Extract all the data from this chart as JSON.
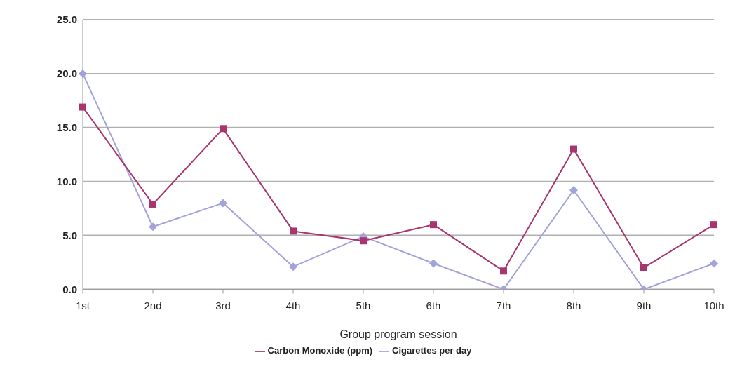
{
  "chart_data": {
    "type": "line",
    "xlabel": "Group program session",
    "categories": [
      "1st",
      "2nd",
      "3rd",
      "4th",
      "5th",
      "6th",
      "7th",
      "8th",
      "9th",
      "10th"
    ],
    "series": [
      {
        "name": "Cigarettes per day",
        "color": "#a3a3dc",
        "marker": "diamond",
        "values": [
          20,
          5.8,
          8,
          2.1,
          4.9,
          2.4,
          0,
          9.2,
          0,
          2.4
        ]
      },
      {
        "name": "Carbon Monoxide (ppm)",
        "color": "#a8356e",
        "marker": "square",
        "values": [
          16.9,
          7.9,
          14.9,
          5.4,
          4.5,
          6.0,
          1.7,
          13.0,
          2.0,
          6.0
        ]
      }
    ],
    "ylim": [
      0,
      25
    ],
    "yticks": [
      {
        "value": 0,
        "label": "0.0"
      },
      {
        "value": 5,
        "label": "5.0"
      },
      {
        "value": 10,
        "label": "10.0"
      },
      {
        "value": 15,
        "label": "15.0"
      },
      {
        "value": 20,
        "label": "20.0"
      },
      {
        "value": 25,
        "label": "25.0"
      }
    ],
    "grid": "y",
    "legend": "bottom"
  }
}
